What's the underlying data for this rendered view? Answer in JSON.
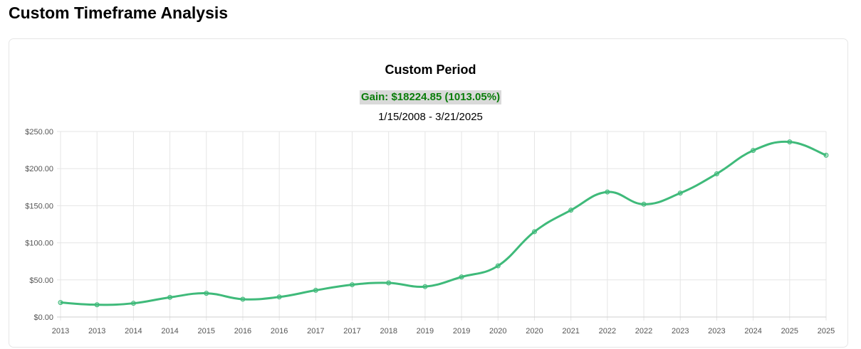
{
  "page": {
    "title": "Custom Timeframe Analysis"
  },
  "chart_data": {
    "type": "line",
    "title": "Custom Period",
    "gain_text": "Gain: $18224.85 (1013.05%)",
    "date_range": "1/15/2008 - 3/21/2025",
    "xlabel": "",
    "ylabel": "",
    "x_tick_labels": [
      "2013",
      "2013",
      "2014",
      "2014",
      "2015",
      "2016",
      "2016",
      "2017",
      "2017",
      "2018",
      "2019",
      "2019",
      "2020",
      "2020",
      "2021",
      "2022",
      "2022",
      "2023",
      "2023",
      "2024",
      "2025",
      "2025"
    ],
    "y_tick_labels": [
      "$0.00",
      "$50.00",
      "$100.00",
      "$150.00",
      "$200.00",
      "$250.00"
    ],
    "ylim": [
      0,
      250
    ],
    "grid": true,
    "series": [
      {
        "values": [
          19.5,
          16.5,
          18.5,
          26.5,
          32,
          24,
          27,
          36,
          43.5,
          46,
          41,
          54,
          69,
          115,
          144,
          168.5,
          152,
          167,
          193,
          224.5,
          236,
          218
        ]
      }
    ],
    "colors": {
      "line": "#3fba7a",
      "gain_text": "#0a7d0a",
      "gain_background": "#d9d9d9"
    }
  }
}
